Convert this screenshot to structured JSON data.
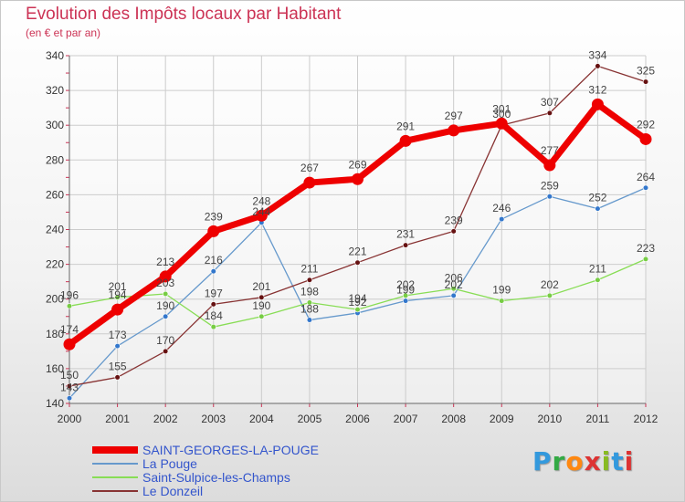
{
  "title": "Evolution des Impôts locaux par Habitant",
  "subtitle": "(en € et par an)",
  "logo_text": "Proxiti",
  "chart_data": {
    "type": "line",
    "x": [
      "2000",
      "2001",
      "2002",
      "2003",
      "2004",
      "2005",
      "2006",
      "2007",
      "2008",
      "2009",
      "2010",
      "2011",
      "2012"
    ],
    "ylim": [
      140,
      340
    ],
    "yticks": [
      140,
      160,
      180,
      200,
      220,
      240,
      260,
      280,
      300,
      320,
      340
    ],
    "grid": true,
    "legend_position": "bottom-left",
    "series": [
      {
        "name": "SAINT-GEORGES-LA-POUGE",
        "color": "#ee0000",
        "emphasis": true,
        "values": [
          174,
          194,
          213,
          239,
          248,
          267,
          269,
          291,
          297,
          301,
          277,
          312,
          292
        ]
      },
      {
        "name": "La Pouge",
        "color": "#6699cc",
        "point_color": "#3377cc",
        "emphasis": false,
        "values": [
          143,
          173,
          190,
          216,
          244,
          188,
          192,
          199,
          202,
          246,
          259,
          252,
          264
        ]
      },
      {
        "name": "Saint-Sulpice-les-Champs",
        "color": "#88dd55",
        "point_color": "#77cc44",
        "emphasis": false,
        "values": [
          196,
          201,
          203,
          184,
          190,
          198,
          194,
          202,
          206,
          199,
          202,
          211,
          223
        ]
      },
      {
        "name": "Le Donzeil",
        "color": "#883333",
        "point_color": "#661111",
        "emphasis": false,
        "values": [
          150,
          155,
          170,
          197,
          201,
          211,
          221,
          231,
          239,
          300,
          307,
          334,
          325
        ]
      }
    ]
  }
}
